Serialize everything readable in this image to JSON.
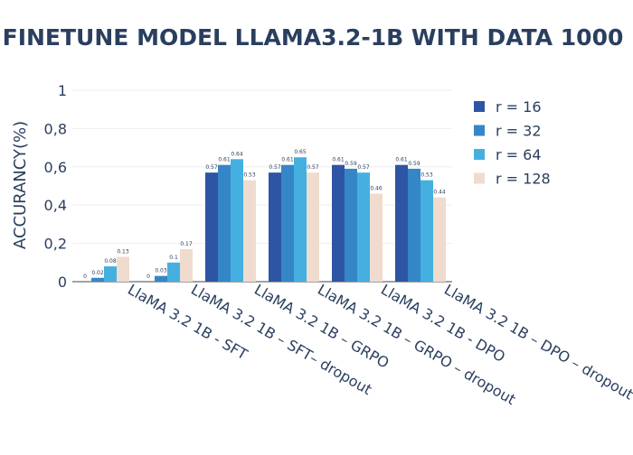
{
  "chart_data": {
    "type": "bar",
    "title": "FINETUNE MODEL LLAMA3.2-1B WITH DATA 1000",
    "xlabel": "",
    "ylabel": "ACCURANCY(%)",
    "ylim": [
      0,
      1
    ],
    "yticks": [
      "0",
      "0,2",
      "0,4",
      "0,6",
      "0,8",
      "1"
    ],
    "ytick_values": [
      0,
      0.2,
      0.4,
      0.6,
      0.8,
      1
    ],
    "grid": true,
    "legend_position": "right",
    "categories": [
      "LlaMA 3.2 1B - SFT",
      "LlaMA 3.2 1B – SFT– dropout",
      "LlaMA 3.2 1B – GRPO",
      "LlaMA 3.2 1B – GRPO – dropout",
      "LlaMA 3.2 1B - DPO",
      "LlaMA 3.2 1B – DPO – dropout"
    ],
    "series": [
      {
        "name": "r = 16",
        "color": "#2e55a5",
        "values": [
          0,
          0,
          0.57,
          0.57,
          0.61,
          0.61
        ],
        "labels": [
          "0",
          "0",
          "0.57",
          "0.57",
          "0.61",
          "0.61"
        ]
      },
      {
        "name": "r = 32",
        "color": "#3586c7",
        "values": [
          0.02,
          0.03,
          0.61,
          0.61,
          0.59,
          0.59
        ],
        "labels": [
          "0.02",
          "0.03",
          "0.61",
          "0.61",
          "0.59",
          "0.59"
        ]
      },
      {
        "name": "r = 64",
        "color": "#45b0e0",
        "values": [
          0.08,
          0.1,
          0.64,
          0.65,
          0.57,
          0.53
        ],
        "labels": [
          "0.08",
          "0.1",
          "0.64",
          "0.65",
          "0.57",
          "0.53"
        ]
      },
      {
        "name": "r = 128",
        "color": "#efdcce",
        "values": [
          0.13,
          0.17,
          0.53,
          0.57,
          0.46,
          0.44
        ],
        "labels": [
          "0.13",
          "0.17",
          "0.53",
          "0.57",
          "0.46",
          "0.44"
        ]
      }
    ]
  }
}
